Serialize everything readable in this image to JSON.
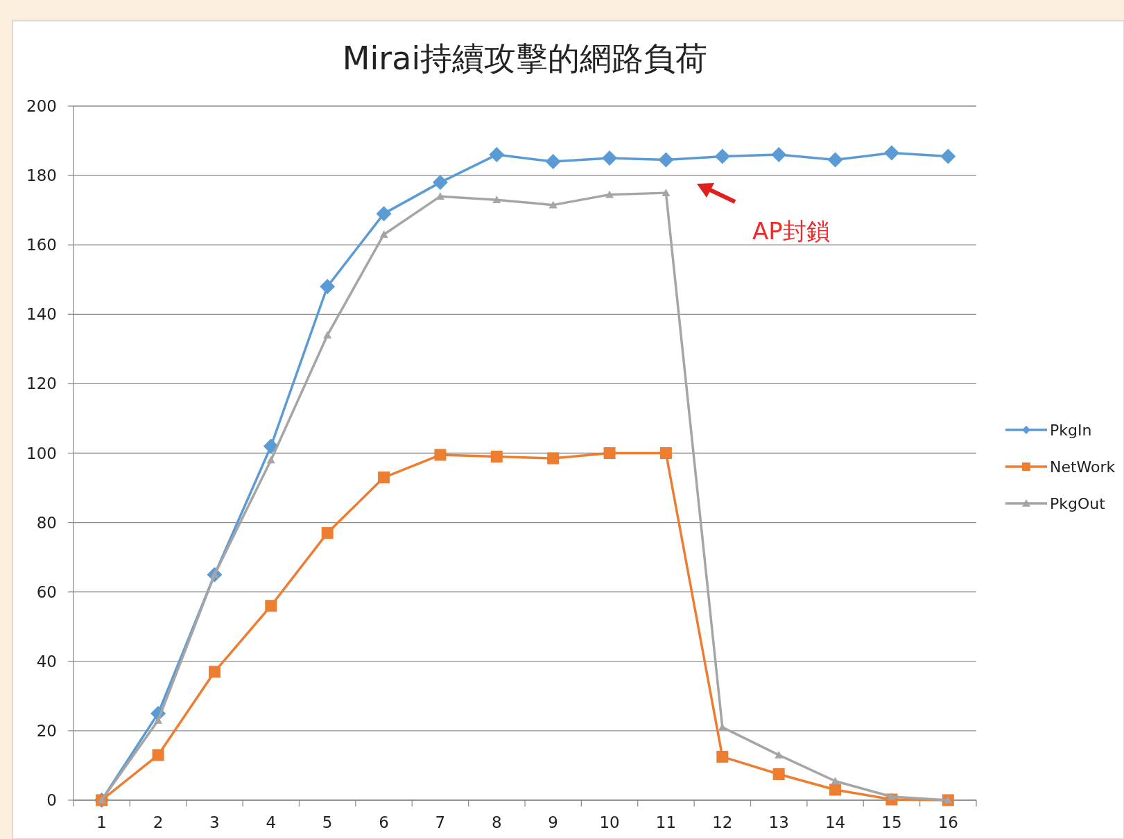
{
  "chart_data": {
    "type": "line",
    "title": "Mirai持續攻擊的網路負荷",
    "categories": [
      "1",
      "2",
      "3",
      "4",
      "5",
      "6",
      "7",
      "8",
      "9",
      "10",
      "11",
      "12",
      "13",
      "14",
      "15",
      "16"
    ],
    "series": [
      {
        "name": "PkgIn",
        "color": "#5b9bd5",
        "marker": "diamond",
        "values": [
          0,
          25,
          65,
          102,
          148,
          169,
          178,
          186,
          184,
          185,
          184.5,
          185.5,
          186,
          184.5,
          186.5,
          185.5
        ]
      },
      {
        "name": "NetWork",
        "color": "#ed7d31",
        "marker": "square",
        "values": [
          0,
          13,
          37,
          56,
          77,
          93,
          99.5,
          99,
          98.5,
          100,
          100,
          12.5,
          7.5,
          3,
          0.2,
          0
        ]
      },
      {
        "name": "PkgOut",
        "color": "#a5a5a5",
        "marker": "triangle",
        "values": [
          0,
          23,
          65,
          98,
          134,
          163,
          174,
          173,
          171.5,
          174.5,
          175,
          21,
          13,
          5.5,
          1,
          0
        ]
      }
    ],
    "ylim": [
      0,
      200
    ],
    "yticks": [
      0,
      20,
      40,
      60,
      80,
      100,
      120,
      140,
      160,
      180,
      200
    ],
    "grid": "y",
    "legend": "right",
    "line_style": "solid",
    "annotations": [
      "AP封鎖"
    ]
  }
}
